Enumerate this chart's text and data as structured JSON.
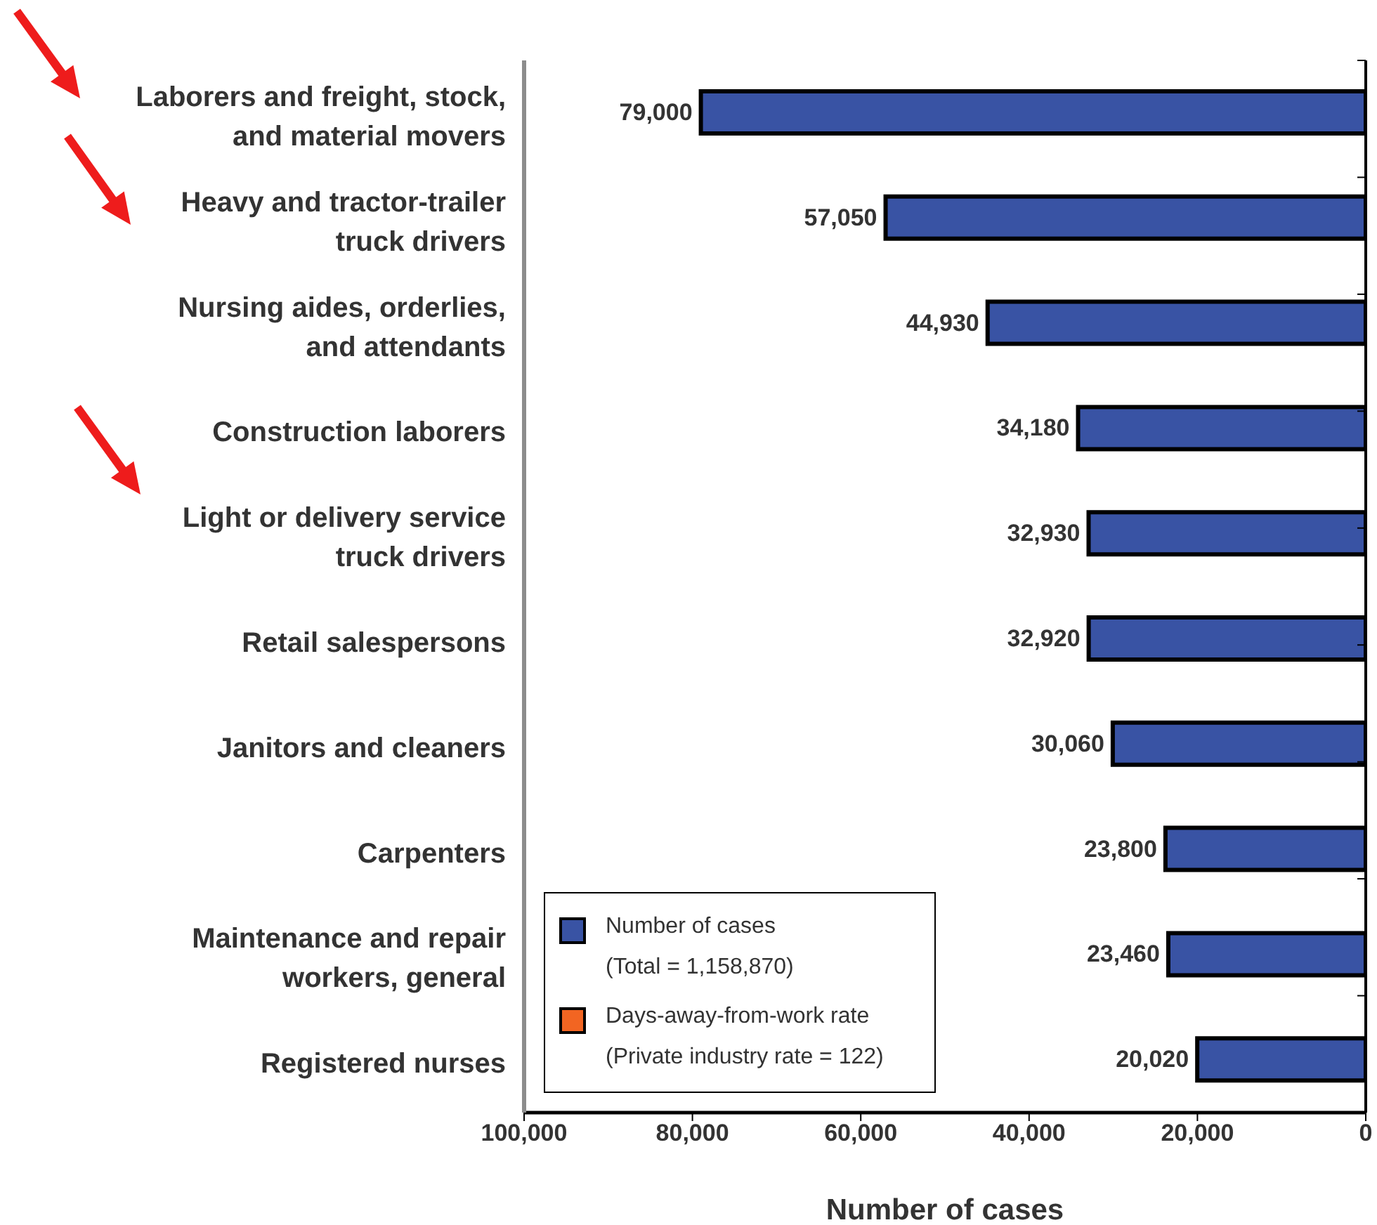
{
  "chart_data": {
    "type": "bar",
    "orientation": "horizontal",
    "categories": [
      "Laborers and freight, stock, and material movers",
      "Heavy and tractor-trailer truck drivers",
      "Nursing aides, orderlies, and attendants",
      "Construction laborers",
      "Light or delivery service truck drivers",
      "Retail salespersons",
      "Janitors and cleaners",
      "Carpenters",
      "Maintenance and repair workers, general",
      "Registered nurses"
    ],
    "series": [
      {
        "name": "Number of cases (Total = 1,158,870)",
        "color": "#3953a4",
        "values": [
          79000,
          57050,
          44930,
          34180,
          32930,
          32920,
          30060,
          23800,
          23460,
          20020
        ],
        "value_labels": [
          "79,000",
          "57,050",
          "44,930",
          "34,180",
          "32,930",
          "32,920",
          "30,060",
          "23,800",
          "23,460",
          "20,020"
        ]
      },
      {
        "name": "Days-away-from-work rate (Private industry rate = 122)",
        "color": "#f26522",
        "values": [
          null,
          null,
          null,
          null,
          null,
          null,
          null,
          null,
          null,
          null
        ]
      }
    ],
    "xlabel": "Number of cases",
    "xlim": [
      100000,
      0
    ],
    "xticks": [
      0,
      {
        "value": 20000,
        "label": "20,000"
      },
      {
        "value": 40000,
        "label": "40,000"
      },
      {
        "value": 60000,
        "label": "60,000"
      },
      {
        "value": 80000,
        "label": "80,000"
      },
      {
        "value": 100000,
        "label": "100,000"
      }
    ],
    "legend": "bottom left"
  }
}
